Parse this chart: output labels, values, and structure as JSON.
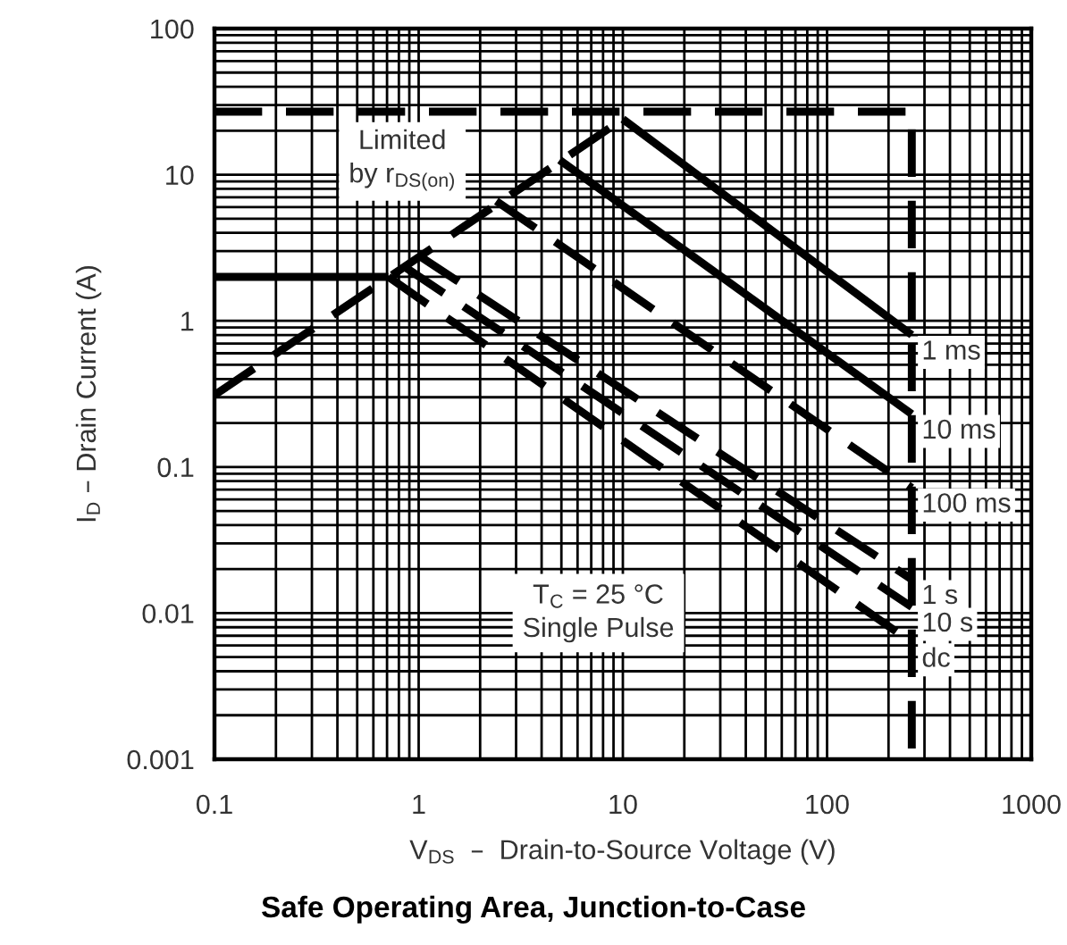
{
  "chart_data": {
    "type": "line",
    "title": "Safe Operating Area, Junction-to-Case",
    "xlabel": "V$_{DS}$  –  Drain-to-Source Voltage (V)",
    "ylabel": "I$_{D}$ – Drain Current (A)",
    "log": "xy",
    "xlim": [
      0.1,
      1000
    ],
    "ylim": [
      0.001,
      100
    ],
    "xticks": [
      0.1,
      1,
      10,
      100,
      1000
    ],
    "yticks": [
      0.001,
      0.01,
      0.1,
      1,
      10,
      100
    ],
    "grid": true,
    "legend": false,
    "marker": "none",
    "annotations": [
      "Limited\nby r$_{DS(on)}$",
      "T$_{C}$ = 25 °C\nSingle Pulse"
    ],
    "series": [
      {
        "color": "#000000",
        "line_style": "dashed",
        "x": [
          0.1,
          260,
          260
        ],
        "values": [
          27,
          27,
          0.001
        ]
      },
      {
        "color": "#000000",
        "line_style": "dashed",
        "x": [
          0.1,
          10
        ],
        "values": [
          0.31,
          24
        ]
      },
      {
        "name": "1 ms",
        "color": "#000000",
        "line_style": "solid",
        "x": [
          10,
          260
        ],
        "values": [
          24,
          0.8
        ]
      },
      {
        "name": "10 ms",
        "color": "#000000",
        "line_style": "solid",
        "x": [
          4.9,
          260
        ],
        "values": [
          12.6,
          0.23
        ]
      },
      {
        "name": "100 ms",
        "color": "#000000",
        "line_style": "dashed",
        "x": [
          2.4,
          260
        ],
        "values": [
          6.6,
          0.072
        ]
      },
      {
        "name": "1 s",
        "color": "#000000",
        "line_style": "dashed",
        "x": [
          1.0,
          260
        ],
        "values": [
          2.8,
          0.017
        ]
      },
      {
        "name": "10 s",
        "color": "#000000",
        "line_style": "dashed",
        "x": [
          0.85,
          260
        ],
        "values": [
          2.35,
          0.011
        ]
      },
      {
        "color": "#000000",
        "line_style": "solid",
        "x": [
          0.1,
          0.71
        ],
        "values": [
          2.0,
          2.0
        ]
      },
      {
        "name": "dc",
        "color": "#000000",
        "line_style": "dashed",
        "x": [
          0.71,
          260
        ],
        "values": [
          2.0,
          0.0063
        ]
      }
    ]
  }
}
